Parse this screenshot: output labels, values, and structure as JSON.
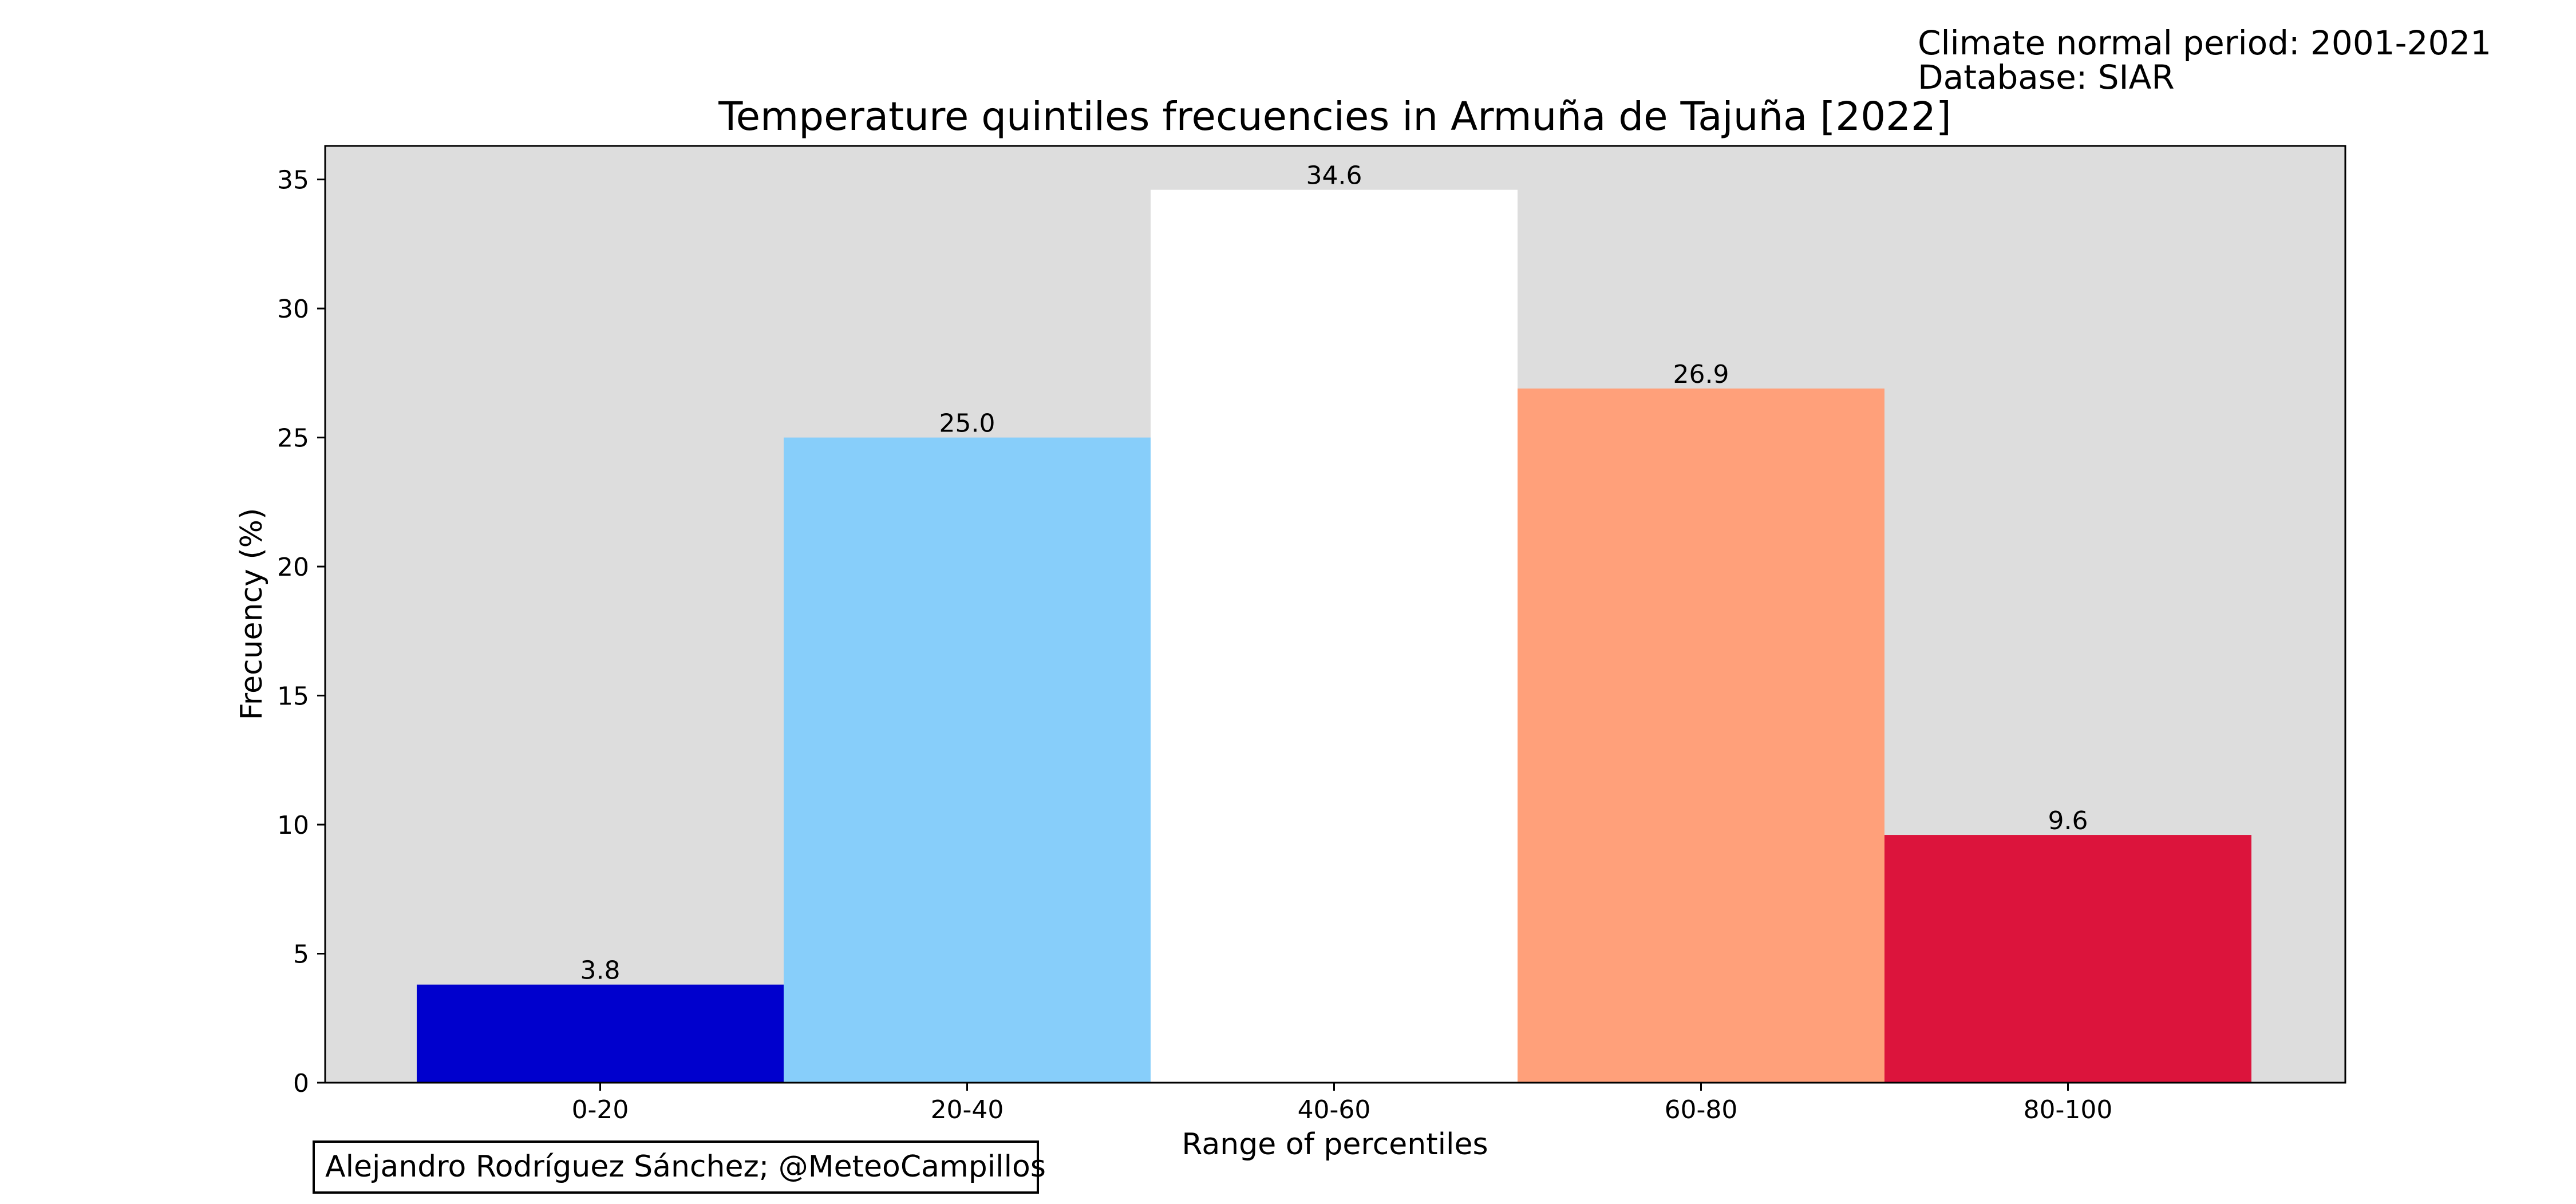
{
  "header_notes": {
    "normal_period": "Climate normal period: 2001-2021",
    "database": "Database: SIAR"
  },
  "credit": "Alejandro Rodríguez Sánchez; @MeteoCampillos",
  "chart_data": {
    "type": "bar",
    "title": "Temperature quintiles frecuencies in Armuña de Tajuña [2022]",
    "xlabel": "Range of percentiles",
    "ylabel": "Frecuency (%)",
    "categories": [
      "0-20",
      "20-40",
      "40-60",
      "60-80",
      "80-100"
    ],
    "values": [
      3.8,
      25.0,
      34.6,
      26.9,
      9.6
    ],
    "value_labels": [
      "3.8",
      "25.0",
      "34.6",
      "26.9",
      "9.6"
    ],
    "colors": [
      "#0000cd",
      "#87cefa",
      "#ffffff",
      "#ffa07a",
      "#dc143c"
    ],
    "ylim": [
      0,
      36.3
    ],
    "yticks": [
      0,
      5,
      10,
      15,
      20,
      25,
      30,
      35
    ],
    "plot_background": "#dddddd",
    "grid": false,
    "legend": "none"
  }
}
